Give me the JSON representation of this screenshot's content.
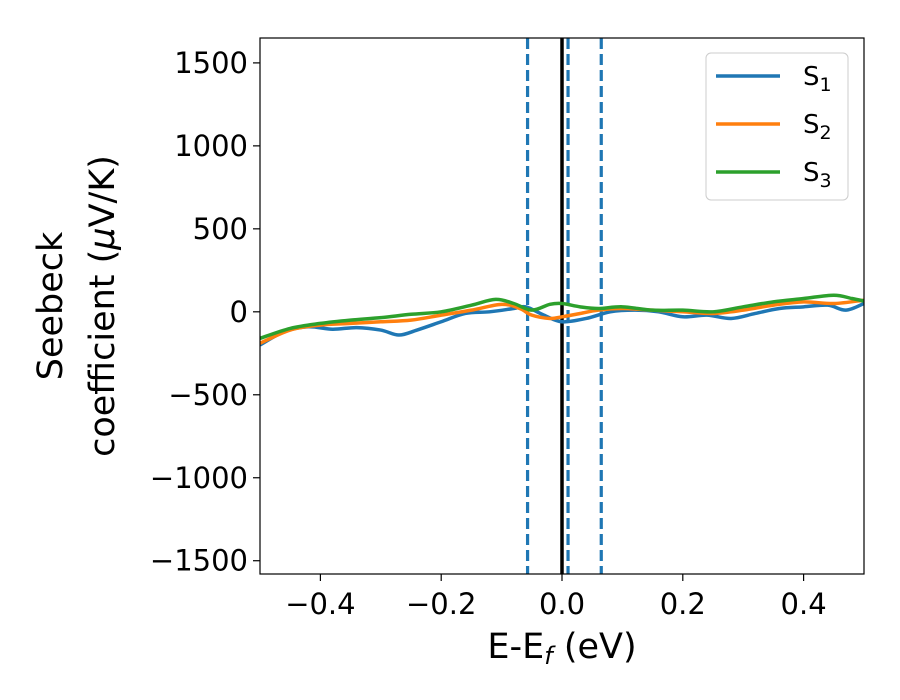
{
  "chart_data": {
    "type": "line",
    "xlabel": "E-E",
    "xlabel_sub": "f",
    "xlabel_unit": " (eV)",
    "ylabel_line1": "Seebeck",
    "ylabel_line2": "coefficient  (",
    "ylabel_mu": "μ",
    "ylabel_unit": "V/K)",
    "xlim": [
      -0.5,
      0.5
    ],
    "ylim": [
      -1580,
      1650
    ],
    "xticks": [
      -0.4,
      -0.2,
      0.0,
      0.2,
      0.4
    ],
    "xtick_labels": [
      "−0.4",
      "−0.2",
      "0.0",
      "0.2",
      "0.4"
    ],
    "yticks": [
      -1500,
      -1000,
      -500,
      0,
      500,
      1000,
      1500
    ],
    "ytick_labels": [
      "−1500",
      "−1000",
      "−500",
      "0",
      "500",
      "1000",
      "1500"
    ],
    "grid": false,
    "legend_position": "top-right",
    "vlines": [
      {
        "x": 0.0,
        "style": "solid",
        "color": "#000000"
      },
      {
        "x": -0.057,
        "style": "dashed",
        "color": "#1f77b4"
      },
      {
        "x": 0.01,
        "style": "dashed",
        "color": "#1f77b4"
      },
      {
        "x": 0.065,
        "style": "dashed",
        "color": "#1f77b4"
      }
    ],
    "series": [
      {
        "name": "S",
        "subscript": "1",
        "color": "#1f77b4",
        "x": [
          -0.5,
          -0.46,
          -0.42,
          -0.38,
          -0.34,
          -0.3,
          -0.27,
          -0.24,
          -0.2,
          -0.16,
          -0.12,
          -0.08,
          -0.06,
          -0.03,
          0.0,
          0.04,
          0.08,
          0.12,
          0.16,
          0.2,
          0.24,
          0.28,
          0.32,
          0.36,
          0.4,
          0.44,
          0.47,
          0.5
        ],
        "y": [
          -200,
          -120,
          -90,
          -105,
          -95,
          -110,
          -140,
          -110,
          -60,
          -10,
          0,
          20,
          30,
          -20,
          -60,
          -40,
          0,
          10,
          0,
          -30,
          -20,
          -40,
          -10,
          20,
          30,
          40,
          10,
          50
        ]
      },
      {
        "name": "S",
        "subscript": "2",
        "color": "#ff7f0e",
        "x": [
          -0.5,
          -0.45,
          -0.4,
          -0.35,
          -0.3,
          -0.25,
          -0.2,
          -0.15,
          -0.1,
          -0.07,
          -0.05,
          -0.02,
          0.0,
          0.03,
          0.06,
          0.1,
          0.15,
          0.2,
          0.25,
          0.3,
          0.35,
          0.4,
          0.45,
          0.5
        ],
        "y": [
          -190,
          -110,
          -80,
          -70,
          -60,
          -50,
          -20,
          10,
          45,
          20,
          -20,
          -40,
          -30,
          -10,
          10,
          20,
          10,
          0,
          -10,
          10,
          40,
          60,
          50,
          70
        ]
      },
      {
        "name": "S",
        "subscript": "3",
        "color": "#2ca02c",
        "x": [
          -0.5,
          -0.45,
          -0.4,
          -0.35,
          -0.3,
          -0.25,
          -0.2,
          -0.15,
          -0.11,
          -0.08,
          -0.05,
          -0.02,
          0.0,
          0.03,
          0.06,
          0.1,
          0.15,
          0.2,
          0.25,
          0.3,
          0.35,
          0.4,
          0.45,
          0.48,
          0.5
        ],
        "y": [
          -160,
          -100,
          -70,
          -50,
          -35,
          -15,
          0,
          40,
          75,
          50,
          10,
          45,
          50,
          30,
          20,
          30,
          10,
          10,
          0,
          30,
          60,
          80,
          100,
          80,
          65
        ]
      }
    ]
  }
}
